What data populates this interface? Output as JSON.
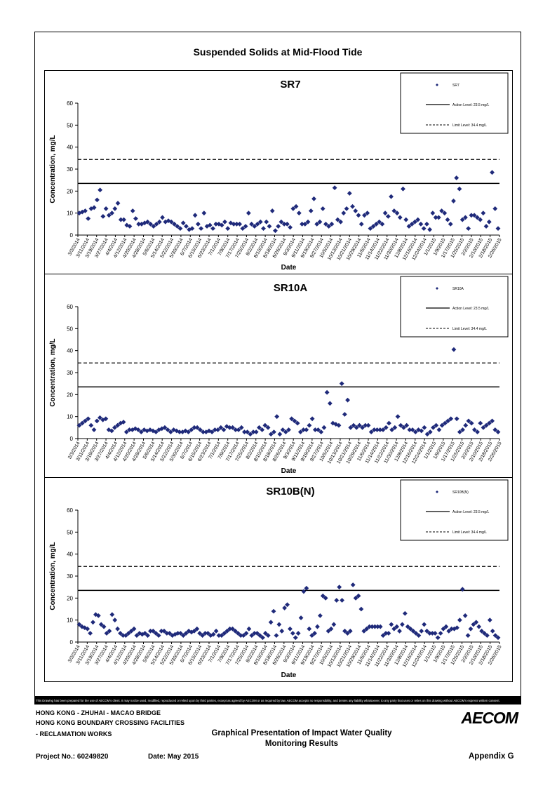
{
  "page_title": "Suspended Solids at Mid-Flood Tide",
  "date_ticks": [
    "3/3/2014",
    "3/11/2014",
    "3/19/2014",
    "3/27/2014",
    "4/4/2014",
    "4/12/2014",
    "4/20/2014",
    "4/28/2014",
    "5/6/2014",
    "5/14/2014",
    "5/22/2014",
    "5/30/2014",
    "6/7/2014",
    "6/15/2014",
    "6/23/2014",
    "7/1/2014",
    "7/9/2014",
    "7/17/2014",
    "7/25/2014",
    "8/2/2014",
    "8/10/2014",
    "8/18/2014",
    "8/26/2014",
    "9/3/2014",
    "9/11/2014",
    "9/19/2014",
    "9/27/2014",
    "10/5/2014",
    "10/13/2014",
    "10/21/2014",
    "10/29/2014",
    "11/6/2014",
    "11/14/2014",
    "11/22/2014",
    "11/30/2014",
    "12/8/2014",
    "12/16/2014",
    "12/24/2014",
    "1/1/2015",
    "1/9/2015",
    "1/17/2015",
    "1/25/2015",
    "2/2/2015",
    "2/10/2015",
    "2/18/2015",
    "2/26/2015"
  ],
  "chart_data": [
    {
      "type": "scatter",
      "title": "SR7",
      "xlabel": "Date",
      "ylabel": "Concentration, mg/L",
      "ylim": [
        0,
        60
      ],
      "yticks": [
        "0",
        "10",
        "20",
        "30",
        "40",
        "50",
        "60"
      ],
      "legend": {
        "position": "top-right",
        "series_label": "SR7",
        "action_label": "Action Level: 23.5 mg/L",
        "limit_label": "Limit Level: 34.4 mg/L"
      },
      "action_level": 23.5,
      "limit_level": 34.4,
      "series": [
        {
          "name": "SR7",
          "values": [
            10,
            10.5,
            11,
            7.5,
            12,
            12.5,
            16,
            20.5,
            8.5,
            12,
            9,
            10,
            12,
            14.5,
            7,
            7,
            4.5,
            4,
            11,
            7.5,
            5,
            5,
            5.5,
            6,
            5,
            4,
            5,
            6,
            8,
            6,
            6.5,
            6,
            5,
            4,
            3,
            5.5,
            4,
            2.5,
            3,
            9,
            5,
            3,
            10,
            4,
            4.5,
            3,
            5,
            5,
            4.5,
            6,
            3,
            5.5,
            5,
            5,
            5,
            3,
            4,
            10,
            5,
            4,
            5,
            6,
            3,
            6,
            4,
            11,
            2,
            4,
            6,
            5,
            5,
            3.5,
            12,
            13,
            10,
            5,
            5,
            6,
            11,
            16.5,
            5,
            6,
            12,
            5,
            4,
            5,
            21.5,
            7,
            6,
            10,
            12,
            19,
            13,
            11,
            9,
            5,
            9,
            10,
            3,
            4,
            5,
            6,
            5,
            10,
            8.5,
            17.5,
            11,
            10,
            8,
            21,
            7,
            4,
            5,
            6,
            7,
            5,
            3,
            5,
            2.5,
            10,
            8,
            8,
            11,
            10,
            7,
            5,
            15.5,
            26,
            21,
            7,
            8,
            3,
            9,
            9,
            8,
            7,
            10,
            4,
            6,
            28.5,
            12,
            3
          ]
        }
      ]
    },
    {
      "type": "scatter",
      "title": "SR10A",
      "xlabel": "Date",
      "ylabel": "Concentration, mg/L",
      "ylim": [
        0,
        60
      ],
      "yticks": [
        "0",
        "10",
        "20",
        "30",
        "40",
        "50",
        "60"
      ],
      "legend": {
        "position": "top-right",
        "series_label": "SR10A",
        "action_label": "Action Level: 23.5 mg/L",
        "limit_label": "Limit Level: 34.4 mg/L"
      },
      "action_level": 23.5,
      "limit_level": 34.4,
      "series": [
        {
          "name": "SR10A",
          "values": [
            6,
            7,
            8,
            9,
            6,
            4,
            8,
            9.5,
            8.5,
            9,
            4,
            3.5,
            5,
            6,
            7,
            7.5,
            3,
            4,
            4,
            4.5,
            4,
            3,
            4,
            3.5,
            4,
            3.5,
            3,
            4,
            4.5,
            5,
            4,
            3,
            4,
            3.5,
            3,
            3,
            3.5,
            3,
            4,
            5,
            5,
            4,
            3,
            3,
            3.5,
            3,
            4,
            4,
            5,
            4,
            5.5,
            5,
            5,
            4,
            4,
            5,
            3,
            3,
            2,
            3,
            3,
            5,
            4,
            6,
            5,
            2,
            3,
            10,
            2,
            4,
            3,
            4,
            9,
            8,
            7,
            3,
            4,
            4,
            6,
            9,
            4,
            4,
            3,
            5,
            21,
            16,
            7,
            6.5,
            6,
            25,
            11,
            17.5,
            5,
            6,
            5,
            6,
            5,
            6,
            6,
            3,
            4,
            4,
            4,
            4,
            5,
            7,
            4,
            5,
            10,
            6,
            5,
            6,
            4,
            4,
            3,
            4,
            3.5,
            5,
            2,
            3,
            5,
            6,
            4,
            6,
            7,
            8,
            9,
            40.5,
            9,
            3,
            4,
            6,
            8,
            7,
            4,
            3,
            7,
            5,
            6,
            7,
            8,
            4,
            3
          ]
        }
      ]
    },
    {
      "type": "scatter",
      "title": "SR10B(N)",
      "xlabel": "Date",
      "ylabel": "Concentration, mg/L",
      "ylim": [
        0,
        60
      ],
      "yticks": [
        "0",
        "10",
        "20",
        "30",
        "40",
        "50",
        "60"
      ],
      "legend": {
        "position": "top-right",
        "series_label": "SR10B(N)",
        "action_label": "Action Level: 23.5 mg/L",
        "limit_label": "Limit Level: 34.4 mg/L"
      },
      "action_level": 23.5,
      "limit_level": 34.4,
      "series": [
        {
          "name": "SR10B(N)",
          "values": [
            8,
            7,
            6.5,
            6,
            4,
            9,
            12.5,
            12,
            8,
            7,
            4,
            5,
            12.5,
            10,
            6,
            4,
            3,
            3,
            4,
            5,
            6,
            3,
            4,
            3.5,
            4,
            3,
            5,
            5,
            4,
            3,
            5,
            5,
            4,
            4,
            3,
            3.5,
            4,
            4,
            3,
            4,
            5,
            4.5,
            5,
            6,
            4,
            3,
            4,
            4,
            3,
            3.5,
            5,
            3,
            3,
            4,
            5,
            6,
            6,
            5,
            4,
            3,
            3,
            4,
            6,
            3,
            4,
            4,
            3,
            2,
            4,
            3,
            9,
            14,
            3,
            8,
            5,
            15.5,
            17,
            6,
            4,
            2,
            4,
            11,
            23,
            24.5,
            6,
            3,
            4,
            7,
            12,
            21,
            20,
            5,
            6,
            8,
            19,
            25,
            19,
            5,
            4,
            5,
            26,
            20,
            21,
            15,
            5,
            6,
            7,
            7,
            7,
            7,
            7,
            3,
            4,
            4,
            8,
            6,
            7,
            5,
            8,
            13,
            7,
            6,
            5,
            4,
            3,
            5,
            8,
            5,
            4,
            4,
            4,
            2,
            4,
            6,
            7,
            5,
            6,
            6,
            6.5,
            10,
            24,
            12,
            3,
            6,
            8,
            9,
            7,
            5,
            4,
            3,
            10,
            5,
            3,
            2
          ]
        }
      ]
    }
  ],
  "disclaimer": "This Drawing has been prepared for the use of AECOM's client. It may not be used, modified, reproduced or relied upon by third parties, except as agreed by AECOM or as required by law. AECOM accepts no responsibility, and denies any liability whatsoever, to any party that uses or relies on this drawing without AECOM's express written consent.",
  "footer": {
    "project_line1": "HONG KONG - ZHUHAI - MACAO BRIDGE",
    "project_line2": "HONG KONG BOUNDARY CROSSING FACILITIES",
    "project_line3": "- RECLAMATION WORKS",
    "project_no": "Project No.: 60249820",
    "date": "Date: May 2015",
    "title_line1": "Graphical Presentation of Impact Water Quality",
    "title_line2": "Monitoring Results",
    "appendix": "Appendix G",
    "logo": "AECOM"
  }
}
